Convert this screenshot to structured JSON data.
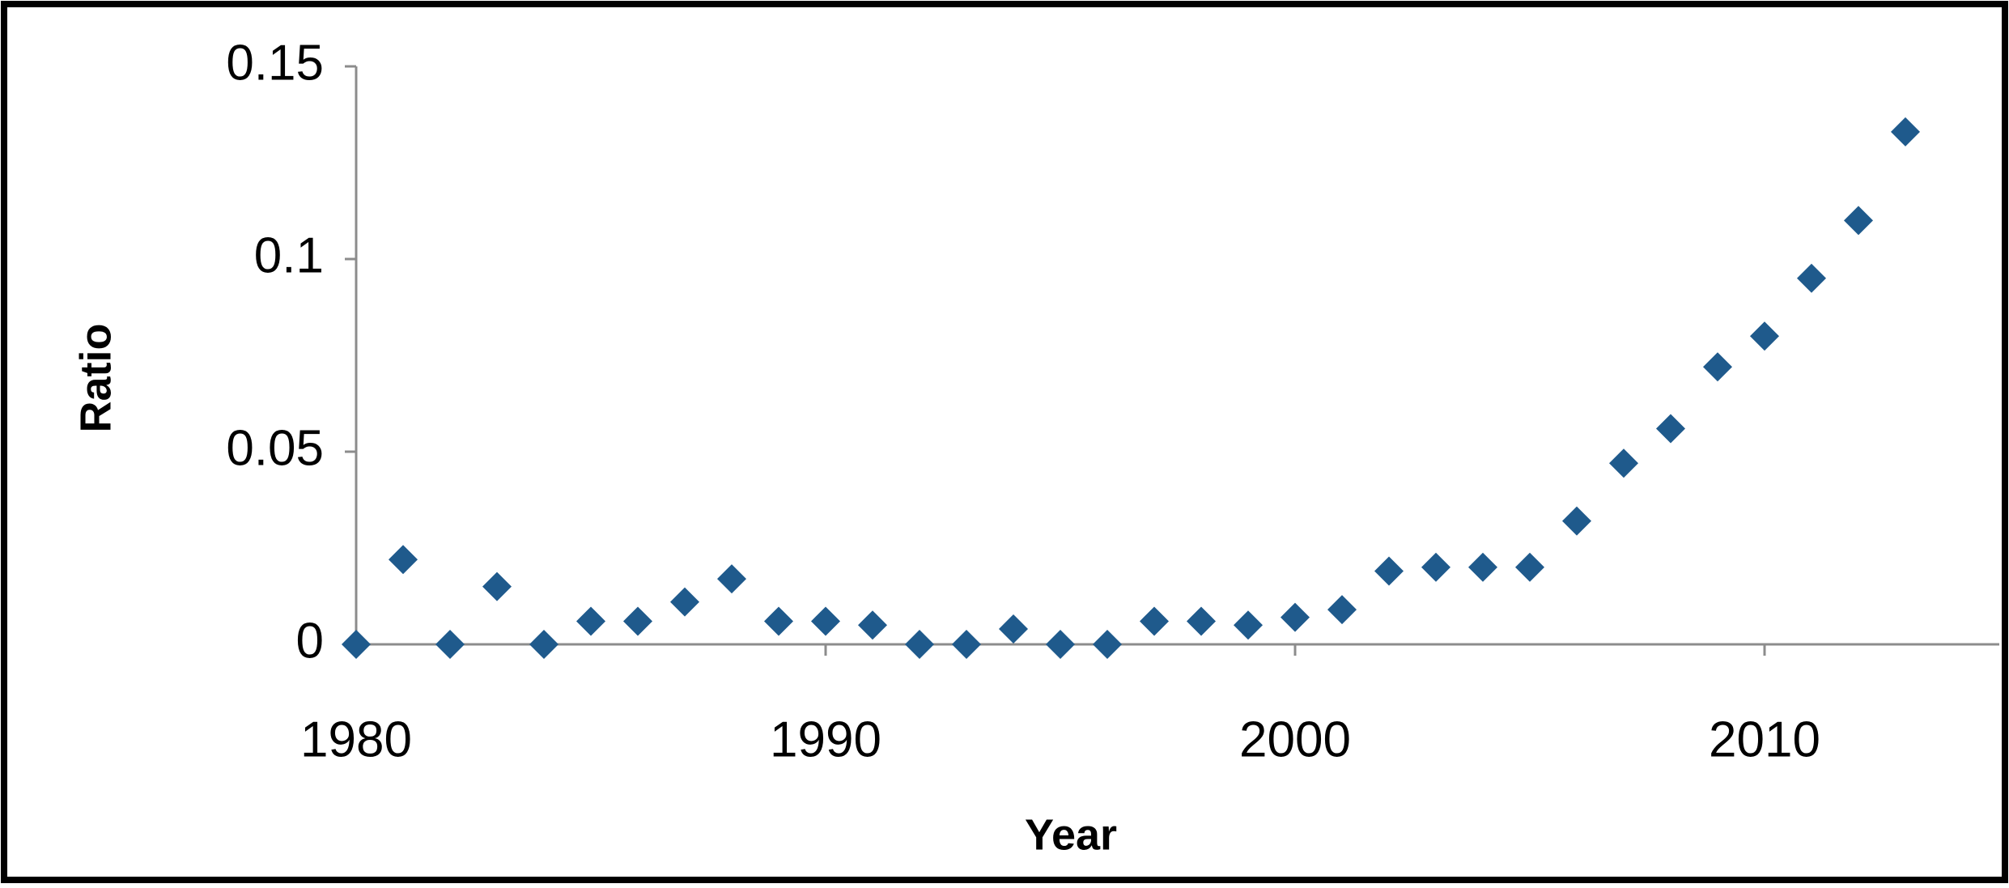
{
  "chart_data": {
    "type": "scatter",
    "x_label": "Year",
    "y_label": "Ratio",
    "x": [
      1980,
      1981,
      1982,
      1983,
      1984,
      1985,
      1986,
      1987,
      1988,
      1989,
      1990,
      1991,
      1992,
      1993,
      1994,
      1995,
      1996,
      1997,
      1998,
      1999,
      2000,
      2001,
      2002,
      2003,
      2004,
      2005,
      2006,
      2007,
      2008,
      2009,
      2010,
      2011,
      2012,
      2013
    ],
    "values": [
      0,
      0.022,
      0,
      0.015,
      0,
      0.006,
      0.006,
      0.011,
      0.017,
      0.006,
      0.006,
      0.005,
      0,
      0,
      0.004,
      0,
      0,
      0.006,
      0.006,
      0.005,
      0.007,
      0.009,
      0.019,
      0.02,
      0.02,
      0.02,
      0.032,
      0.047,
      0.056,
      0.072,
      0.08,
      0.095,
      0.11,
      0.133
    ],
    "color": "#1f5a8c",
    "xlim": [
      1980,
      2015
    ],
    "xticks": [
      1980,
      1990,
      2000,
      2010
    ],
    "ylim": [
      0,
      0.15
    ],
    "yticks": [
      0,
      0.05,
      0.1,
      0.15
    ],
    "grid": false
  }
}
